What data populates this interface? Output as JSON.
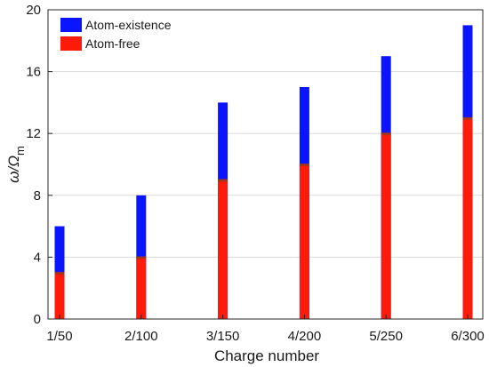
{
  "chart_data": {
    "type": "bar",
    "title": "",
    "xlabel": "Charge number",
    "ylabel": "ω/Ω",
    "ylabel_sub": "m",
    "categories": [
      "1/50",
      "2/100",
      "3/150",
      "4/200",
      "5/250",
      "6/300"
    ],
    "series": [
      {
        "name": "Atom-existence",
        "values": [
          6,
          8,
          14,
          15,
          17,
          19
        ],
        "color": "#0a14ff"
      },
      {
        "name": "Atom-free",
        "values": [
          3,
          4,
          9,
          10,
          12,
          13
        ],
        "color": "#ff1a0a"
      }
    ],
    "ylim": [
      0,
      20
    ],
    "yticks": [
      "0",
      "4",
      "8",
      "12",
      "16",
      "20"
    ],
    "ytick_values": [
      0,
      4,
      8,
      12,
      16,
      20
    ],
    "grid": "horizontal",
    "legend_position": "top-left",
    "colors": {
      "axis": "#262626",
      "grid": "#d9d9d9",
      "overlap_mark": "#9a3a1a"
    }
  }
}
